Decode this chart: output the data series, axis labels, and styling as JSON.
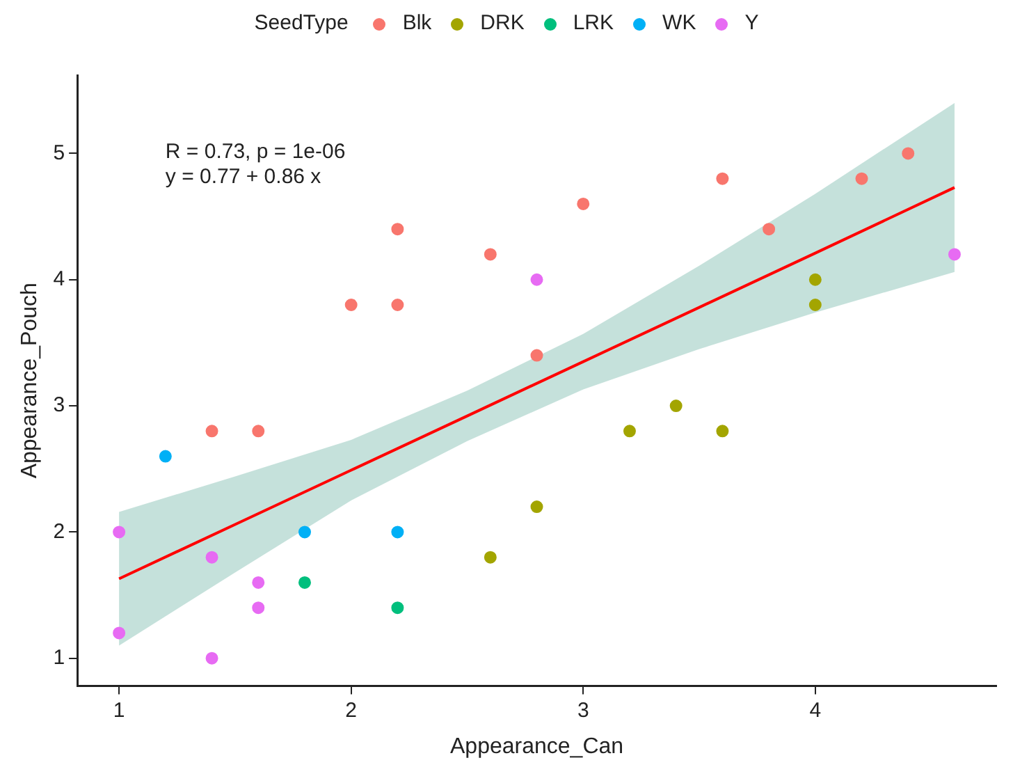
{
  "chart_data": {
    "type": "scatter",
    "xlabel": "Appearance_Can",
    "ylabel": "Appearance_Pouch",
    "legend_title": "SeedType",
    "legend": "top",
    "grid": false,
    "marker": "circle",
    "xlim": [
      0.82,
      4.78
    ],
    "xticks": [
      1,
      2,
      3,
      4
    ],
    "ylim": [
      0.78,
      5.62
    ],
    "yticks": [
      1,
      2,
      3,
      4,
      5
    ],
    "annotations": [
      "R = 0.73, p = 1e-06",
      "y = 0.77 + 0.86 x"
    ],
    "series": [
      {
        "name": "Blk",
        "color": "#f8766d",
        "x": [
          1.4,
          1.6,
          2.0,
          2.2,
          2.2,
          2.6,
          2.8,
          3.0,
          3.6,
          3.8,
          4.2,
          4.4
        ],
        "values": [
          2.8,
          2.8,
          3.8,
          3.8,
          4.4,
          4.2,
          3.4,
          4.6,
          4.8,
          4.4,
          4.8,
          5.0
        ]
      },
      {
        "name": "DRK",
        "color": "#a3a500",
        "x": [
          2.6,
          2.8,
          3.2,
          3.4,
          3.6,
          4.0,
          4.0
        ],
        "values": [
          1.8,
          2.2,
          2.8,
          3.0,
          2.8,
          4.0,
          3.8
        ]
      },
      {
        "name": "LRK",
        "color": "#00bf7d",
        "x": [
          1.8,
          2.2
        ],
        "values": [
          1.6,
          1.4
        ]
      },
      {
        "name": "WK",
        "color": "#00b0f6",
        "x": [
          1.2,
          1.8,
          2.2
        ],
        "values": [
          2.6,
          2.0,
          2.0
        ]
      },
      {
        "name": "Y",
        "color": "#e76bf3",
        "x": [
          1.0,
          1.0,
          1.4,
          1.4,
          1.6,
          1.6,
          2.8,
          4.6
        ],
        "values": [
          2.0,
          1.2,
          1.8,
          1.0,
          1.6,
          1.4,
          4.0,
          4.2
        ]
      },
      {
        "type": "line",
        "marker": "none",
        "color": "#ff0000",
        "x": [
          1,
          1.5,
          2,
          2.5,
          3,
          3.5,
          4,
          4.6
        ],
        "values": [
          1.63,
          2.06,
          2.49,
          2.92,
          3.35,
          3.78,
          4.21,
          4.73
        ],
        "lower": [
          1.1,
          1.68,
          2.25,
          2.72,
          3.13,
          3.45,
          3.74,
          4.06
        ],
        "upper": [
          2.16,
          2.44,
          2.73,
          3.12,
          3.57,
          4.11,
          4.68,
          5.4
        ]
      }
    ]
  }
}
